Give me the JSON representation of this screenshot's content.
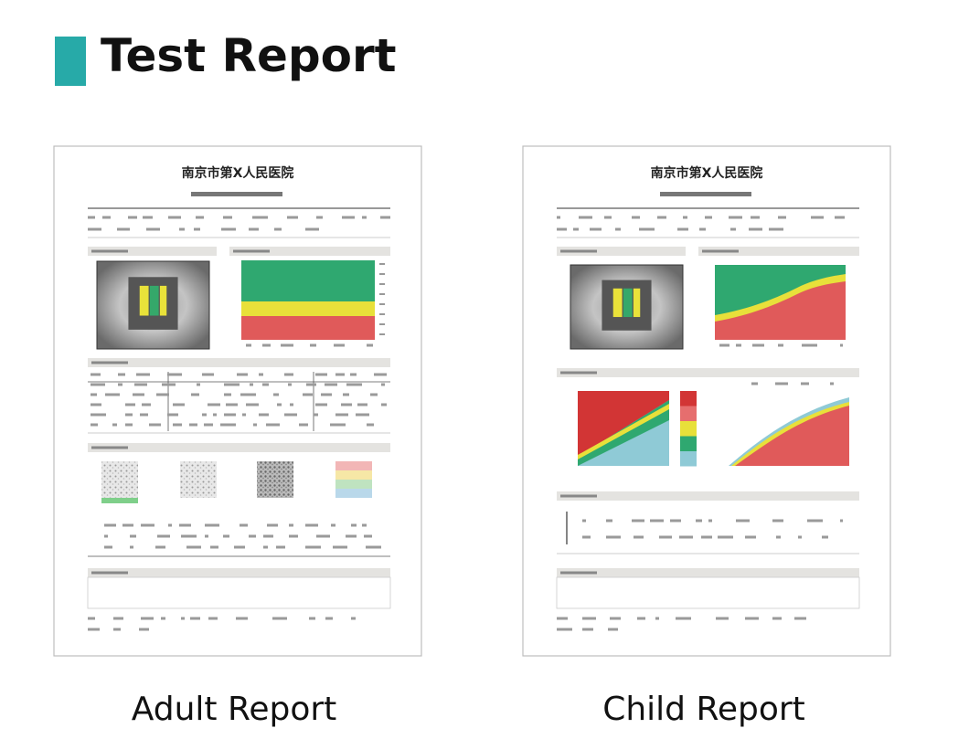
{
  "header": {
    "title": "Test Report"
  },
  "reports": [
    {
      "hospital": "南京市第X人民医院",
      "caption": "Adult Report"
    },
    {
      "hospital": "南京市第X人民医院",
      "caption": "Child Report"
    }
  ]
}
